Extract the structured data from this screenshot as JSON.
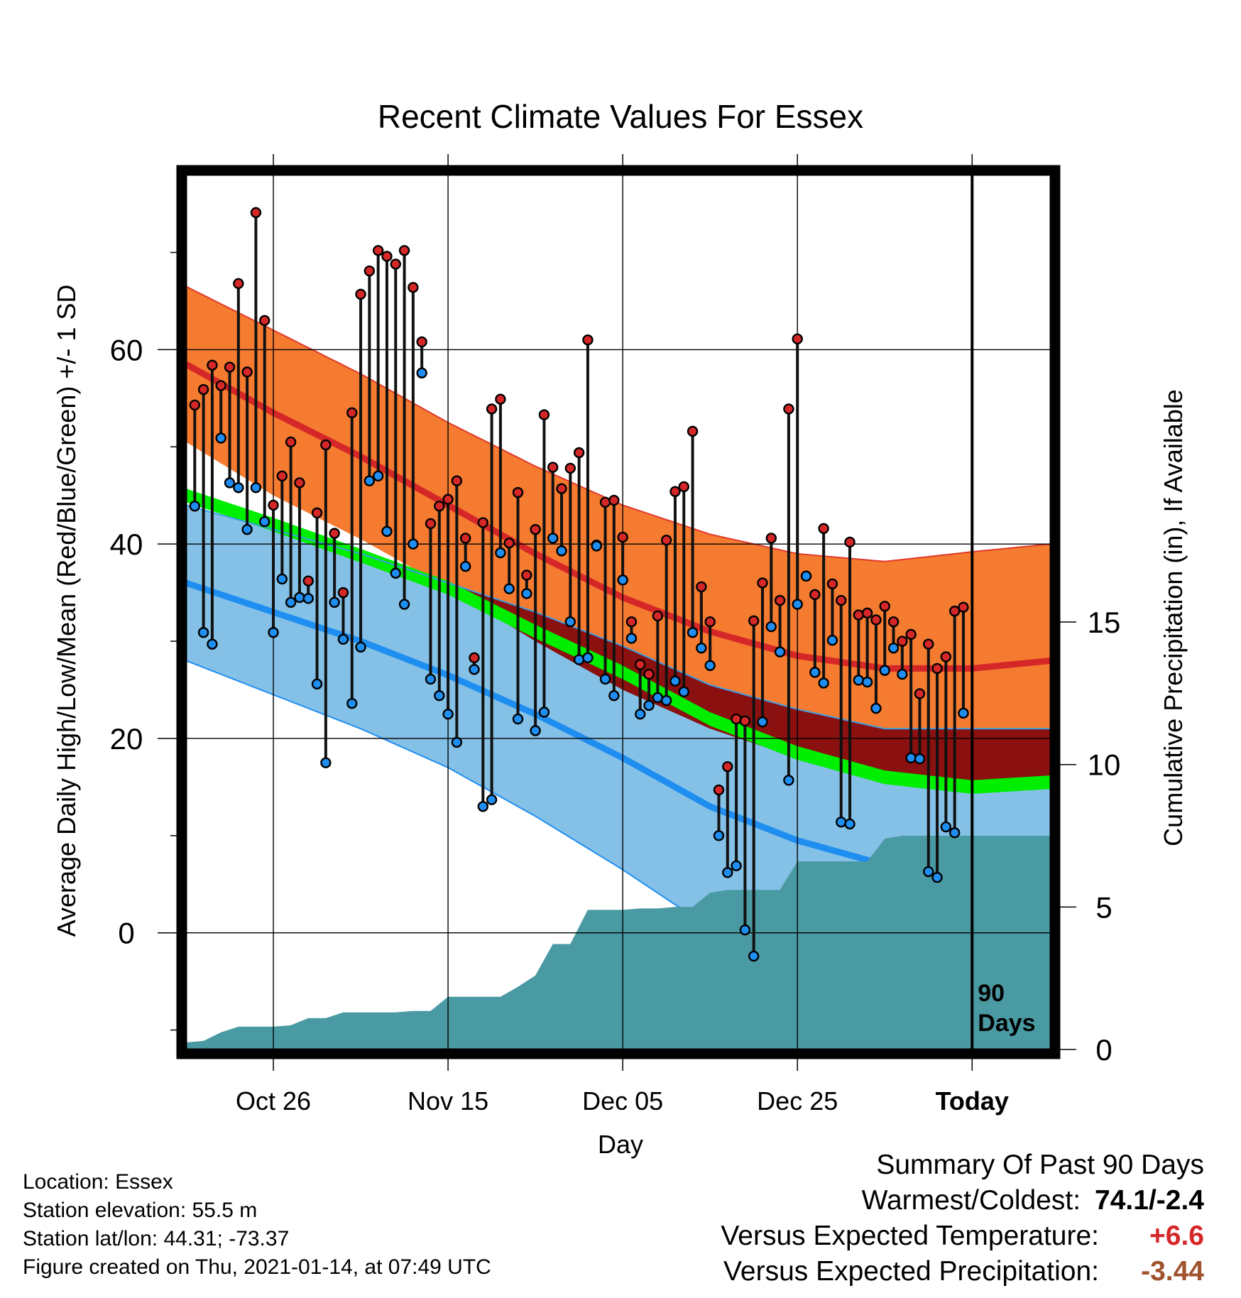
{
  "title": "Recent Climate Values For Essex",
  "axes": {
    "ylabel_left": "Average Daily High/Low/Mean (Red/Blue/Green) +/- 1 SD",
    "ylabel_right": "Cumulative Precipitation (in), If Available",
    "xlabel": "Day",
    "left_ticks": [
      "0",
      "20",
      "40",
      "60"
    ],
    "right_ticks": [
      "0",
      "5",
      "10",
      "15"
    ],
    "x_ticks": [
      "Oct 26",
      "Nov 15",
      "Dec 05",
      "Dec 25",
      "Today"
    ],
    "today_label_line1": "90",
    "today_label_line2": "Days"
  },
  "info": {
    "location": "Location: Essex",
    "elevation": "Station elevation: 55.5 m",
    "latlon": "Station lat/lon: 44.31; -73.37",
    "created": "Figure created on Thu, 2021-01-14, at 07:49 UTC"
  },
  "summary": {
    "heading": "Summary Of Past 90 Days",
    "warmest_label": "Warmest/Coldest:",
    "warmest_value": "74.1/-2.4",
    "temp_label": "Versus Expected Temperature:",
    "temp_value": "+6.6",
    "temp_color": "#d62728",
    "precip_label": "Versus Expected Precipitation:",
    "precip_value": "-3.44",
    "precip_color": "#a0522d"
  },
  "colors": {
    "normal_high_band": "#f47b30",
    "normal_high_line": "#d62728",
    "normal_low_band": "#85c1e6",
    "normal_low_line": "#1f8ef1",
    "normal_mean_band": "#00ee00",
    "overlap_band": "#8b1010",
    "precip_fill": "#4a9aa3",
    "high_point": "#d62728",
    "low_point": "#1f8ef1"
  },
  "chart_data": {
    "type": "line",
    "title": "Recent Climate Values For Essex",
    "xlabel": "Day",
    "ylabel": "Average Daily High/Low/Mean (Red/Blue/Green) +/- 1 SD",
    "y2label": "Cumulative Precipitation (in), If Available",
    "x_range_days": [
      -90,
      9
    ],
    "x_tick_days": [
      -80,
      -60,
      -40,
      -20,
      0
    ],
    "x_tick_labels": [
      "Oct 26",
      "Nov 15",
      "Dec 05",
      "Dec 25",
      "Today"
    ],
    "ylim": [
      -12,
      78
    ],
    "y2lim": [
      0,
      30.7
    ],
    "grid": true,
    "normals": {
      "days": [
        -90,
        -80,
        -70,
        -60,
        -50,
        -40,
        -30,
        -20,
        -10,
        0,
        9
      ],
      "high_mean": [
        58.5,
        53.5,
        49,
        44,
        39,
        34.5,
        31,
        28.5,
        27.2,
        27.2,
        28
      ],
      "high_sd": [
        8,
        8.5,
        8.5,
        8.5,
        9,
        9.5,
        10,
        10.5,
        11,
        12,
        12
      ],
      "low_mean": [
        36,
        33,
        30,
        26.5,
        22.5,
        18,
        13,
        9.5,
        7,
        6,
        6
      ],
      "low_sd": [
        8,
        8.5,
        9,
        9.5,
        10.5,
        11.5,
        12.5,
        13.5,
        14,
        15,
        15
      ],
      "mean": [
        45,
        42,
        38.8,
        35.5,
        31,
        26.8,
        22,
        18.5,
        16,
        15,
        15.5
      ]
    },
    "series": [
      {
        "name": "High",
        "values": [
          54.3,
          55.9,
          58.4,
          56.3,
          58.2,
          66.8,
          57.7,
          74.1,
          63.0,
          44.0,
          47.0,
          50.5,
          46.3,
          36.2,
          43.2,
          50.2,
          41.1,
          35.0,
          53.5,
          65.7,
          68.1,
          70.2,
          69.6,
          68.8,
          70.2,
          66.4,
          60.8,
          42.1,
          43.9,
          44.6,
          46.5,
          40.6,
          28.3,
          42.2,
          53.9,
          54.9,
          40.1,
          45.3,
          36.8,
          41.5,
          53.3,
          47.9,
          45.7,
          47.8,
          49.4,
          61.0,
          39.9,
          44.3,
          44.5,
          40.7,
          32.0,
          27.6,
          26.6,
          32.6,
          40.4,
          45.4,
          45.9,
          51.6,
          35.6,
          32.0,
          14.7,
          17.1,
          22.0,
          21.8,
          32.1,
          36.0,
          40.6,
          34.2,
          53.9,
          61.1,
          36.7,
          34.8,
          41.6,
          35.9,
          34.2,
          40.2,
          32.7,
          32.9,
          32.2,
          33.6,
          32.0,
          30.0,
          30.7,
          24.6,
          29.7,
          27.2,
          28.4,
          33.1,
          33.5
        ]
      },
      {
        "name": "Low",
        "values": [
          43.9,
          30.9,
          29.7,
          50.9,
          46.3,
          45.8,
          41.5,
          45.8,
          42.3,
          30.9,
          36.4,
          34.0,
          34.5,
          34.4,
          25.6,
          17.5,
          34.0,
          30.2,
          23.6,
          29.4,
          46.5,
          47.0,
          41.3,
          37.0,
          33.8,
          40.0,
          57.6,
          26.1,
          24.4,
          22.5,
          19.6,
          37.7,
          27.1,
          13.0,
          13.7,
          39.1,
          35.4,
          22.0,
          34.9,
          20.8,
          22.7,
          40.6,
          39.3,
          32.0,
          28.1,
          28.3,
          39.8,
          26.1,
          24.4,
          36.3,
          30.3,
          22.5,
          23.4,
          24.2,
          23.9,
          25.9,
          24.8,
          30.9,
          29.3,
          27.5,
          10.0,
          6.2,
          6.9,
          0.3,
          -2.4,
          21.7,
          31.5,
          28.9,
          15.7,
          33.8,
          36.7,
          26.8,
          25.7,
          30.1,
          11.4,
          11.2,
          26.0,
          25.8,
          23.1,
          27.0,
          29.3,
          26.6,
          18.0,
          17.9,
          6.3,
          5.7,
          10.9,
          10.3,
          22.6
        ]
      },
      {
        "name": "Cumulative Precipitation",
        "days": [
          -90,
          -88,
          -86,
          -84,
          -82,
          -80,
          -78,
          -76,
          -74,
          -72,
          -70,
          -68,
          -66,
          -64,
          -62,
          -60,
          -58,
          -56,
          -54,
          -52,
          -50,
          -48,
          -46,
          -44,
          -42,
          -40,
          -38,
          -36,
          -34,
          -32,
          -30,
          -28,
          -26,
          -24,
          -22,
          -20,
          -18,
          -16,
          -14,
          -12,
          -10,
          -8,
          -6,
          -4,
          -2,
          0,
          9
        ],
        "values": [
          0.25,
          0.3,
          0.6,
          0.8,
          0.8,
          0.8,
          0.85,
          1.1,
          1.1,
          1.3,
          1.3,
          1.3,
          1.3,
          1.35,
          1.35,
          1.85,
          1.85,
          1.85,
          1.85,
          2.2,
          2.6,
          3.7,
          3.7,
          4.9,
          4.9,
          4.9,
          4.95,
          4.95,
          5.0,
          5.0,
          5.5,
          5.6,
          5.6,
          5.6,
          5.6,
          6.6,
          6.6,
          6.6,
          6.6,
          6.6,
          7.4,
          7.5,
          7.5,
          7.5,
          7.5,
          7.5,
          7.5
        ]
      }
    ]
  }
}
